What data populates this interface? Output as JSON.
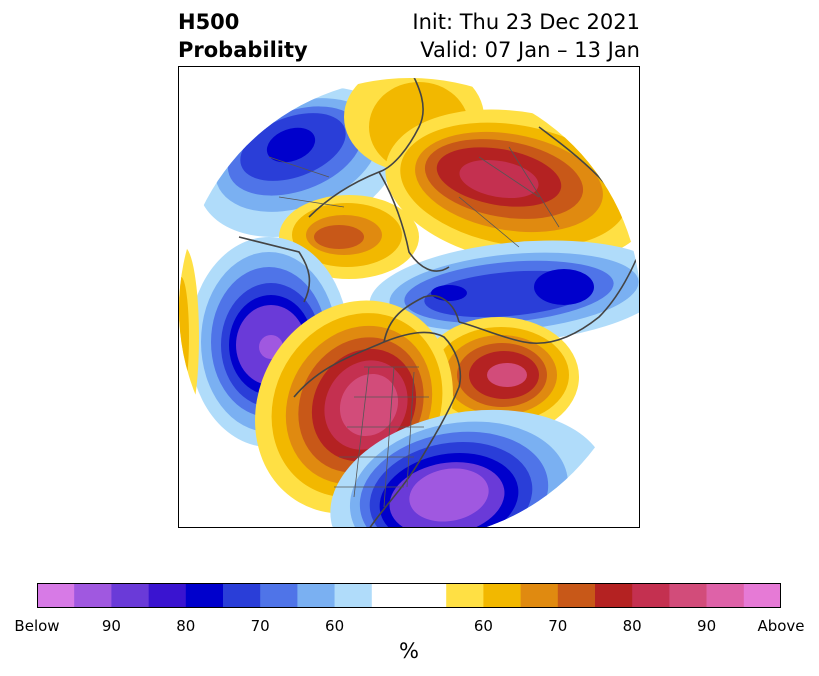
{
  "title": {
    "left_line1": "H500",
    "left_line2": "Probability",
    "right_line1": "Init: Thu 23 Dec 2021",
    "right_line2": "Valid: 07 Jan – 13 Jan"
  },
  "colorbar": {
    "colors": [
      "#d77ae6",
      "#a058e0",
      "#6a3ad8",
      "#3a14d0",
      "#0000cc",
      "#2a3ed8",
      "#4f74e8",
      "#7ab0f2",
      "#b0dcfa",
      "#ffffff",
      "#ffffff",
      "#ffe044",
      "#f2b800",
      "#e08a10",
      "#c85818",
      "#b42222",
      "#c43050",
      "#d24c7a",
      "#de62a8",
      "#e67ad6"
    ],
    "tick_labels": [
      "Below",
      "90",
      "80",
      "70",
      "60",
      "",
      "60",
      "70",
      "80",
      "90",
      "Above"
    ],
    "unit": "%"
  },
  "map": {
    "type": "polar-stereographic probability anomaly map",
    "below_colors": [
      "#b0dcfa",
      "#4f74e8",
      "#2a3ed8",
      "#0000cc",
      "#6a3ad8",
      "#a058e0"
    ],
    "above_colors": [
      "#ffe044",
      "#f2b800",
      "#e08a10",
      "#c85818",
      "#b42222",
      "#d24c7a",
      "#de62a8"
    ]
  }
}
